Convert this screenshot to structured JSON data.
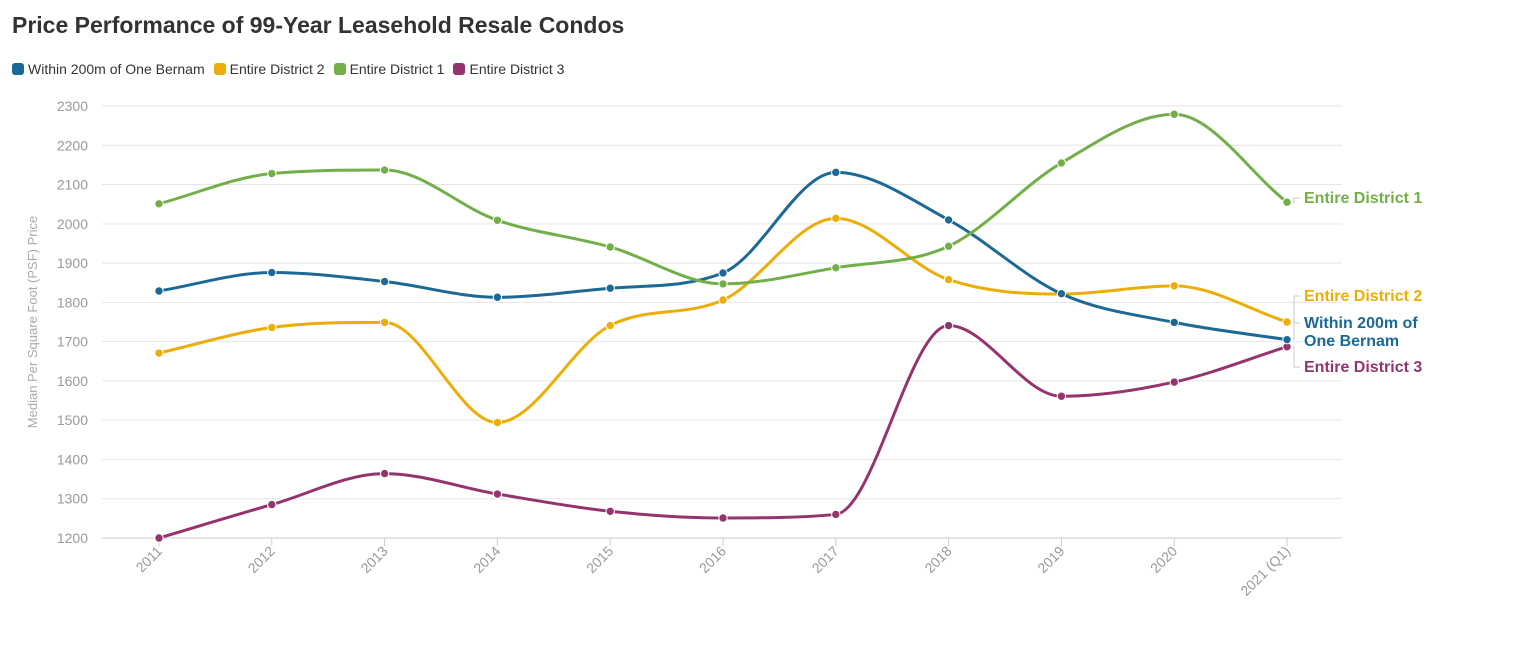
{
  "chart_data": {
    "type": "line",
    "title": "Price Performance of 99-Year Leasehold Resale Condos",
    "xlabel": "",
    "ylabel": "Median Per Square Foot (PSF) Price",
    "categories": [
      "2011",
      "2012",
      "2013",
      "2014",
      "2015",
      "2016",
      "2017",
      "2018",
      "2019",
      "2020",
      "2021 (Q1)"
    ],
    "yticks": [
      1200,
      1300,
      1400,
      1500,
      1600,
      1700,
      1800,
      1900,
      2000,
      2100,
      2200,
      2300
    ],
    "ylim": [
      1200,
      2300
    ],
    "grid": true,
    "legend_position": "top-left",
    "series": [
      {
        "name": "Within 200m of One Bernam",
        "color": "#1d6996",
        "values": [
          1829,
          1876,
          1853,
          1813,
          1836,
          1875,
          2131,
          2010,
          1822,
          1749,
          1705
        ]
      },
      {
        "name": "Entire District 2",
        "color": "#edad08",
        "values": [
          1671,
          1736,
          1749,
          1494,
          1741,
          1806,
          2014,
          1858,
          1821,
          1842,
          1750
        ]
      },
      {
        "name": "Entire District 1",
        "color": "#73af48",
        "values": [
          2051,
          2128,
          2137,
          2009,
          1941,
          1847,
          1888,
          1943,
          2155,
          2279,
          2055
        ]
      },
      {
        "name": "Entire District 3",
        "color": "#94346e",
        "values": [
          1200,
          1285,
          1364,
          1312,
          1268,
          1251,
          1260,
          1741,
          1561,
          1597,
          1687
        ]
      }
    ],
    "end_labels": [
      {
        "series": 2,
        "lines": [
          "Entire District 1"
        ]
      },
      {
        "series": 1,
        "lines": [
          "Entire District 2"
        ]
      },
      {
        "series": 0,
        "lines": [
          "Within 200m of",
          "One Bernam"
        ]
      },
      {
        "series": 3,
        "lines": [
          "Entire District 3"
        ]
      }
    ]
  }
}
